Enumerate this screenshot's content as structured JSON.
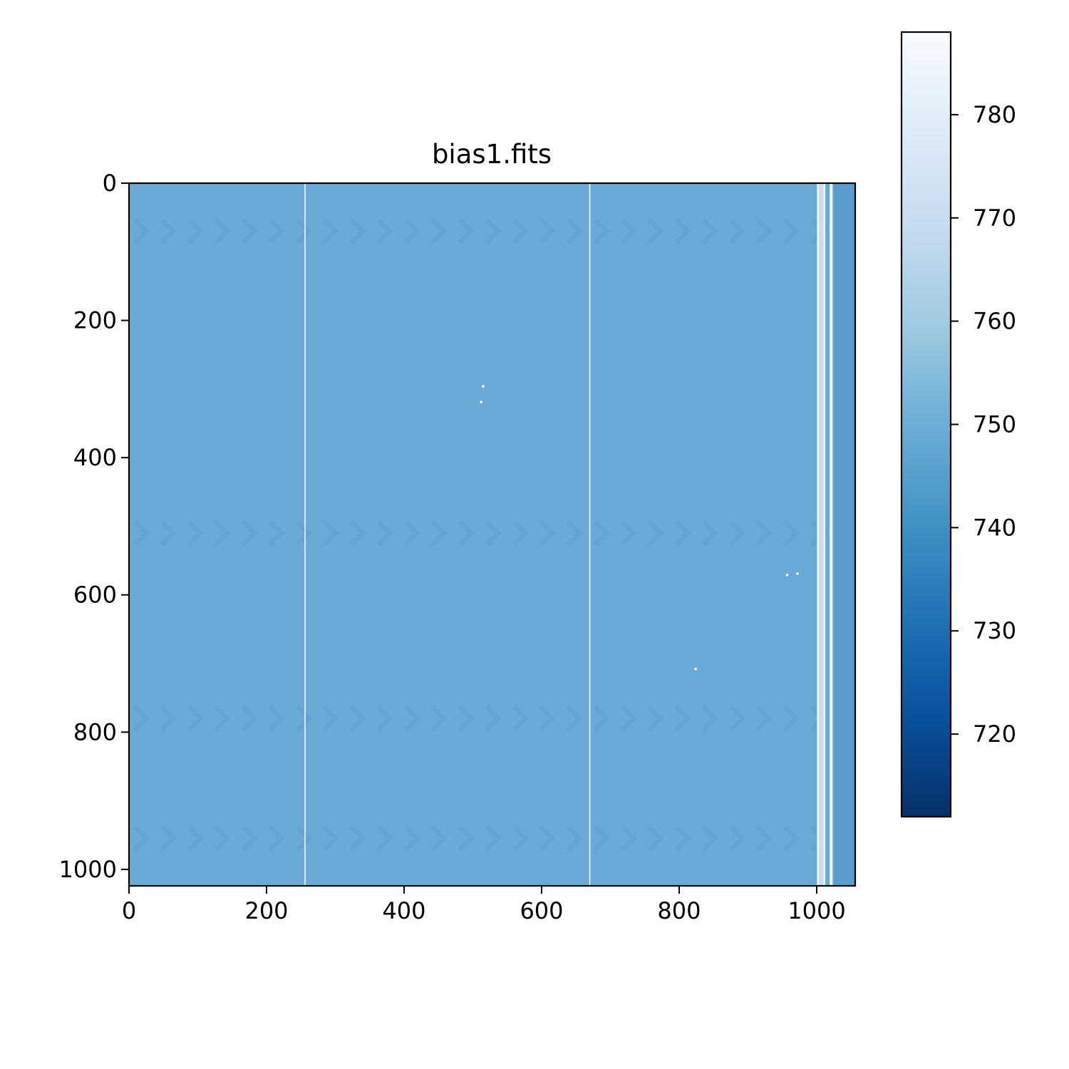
{
  "chart_data": {
    "type": "heatmap",
    "title": "bias1.fits",
    "xlabel": "",
    "ylabel": "",
    "image_shape": {
      "rows": 1024,
      "cols": 1056
    },
    "xlim": [
      0,
      1056
    ],
    "ylim": [
      1024,
      0
    ],
    "y_axis_inverted": true,
    "x_ticks": [
      0,
      200,
      400,
      600,
      800,
      1000
    ],
    "x_tick_labels": [
      "0",
      "200",
      "400",
      "600",
      "800",
      "1000"
    ],
    "y_ticks": [
      0,
      200,
      400,
      600,
      800,
      1000
    ],
    "y_tick_labels": [
      "0",
      "200",
      "400",
      "600",
      "800",
      "1000"
    ],
    "colormap": "Blues_r",
    "color_range": [
      712,
      788
    ],
    "colorbar_ticks": [
      720,
      730,
      740,
      750,
      760,
      770,
      780
    ],
    "colorbar_tick_labels": [
      "720",
      "730",
      "740",
      "750",
      "760",
      "770",
      "780"
    ],
    "colorbar_position": "right",
    "grid": false,
    "typical_value": 749,
    "bright_columns": [
      256,
      670,
      1002,
      1011,
      1021
    ],
    "overscan_region": {
      "x_start": 1025,
      "x_end": 1056,
      "value": 744
    },
    "herringbone_bands_rows": [
      70,
      510,
      780,
      955
    ],
    "hot_pixels": [
      {
        "x": 515,
        "y": 296
      },
      {
        "x": 512,
        "y": 319
      },
      {
        "x": 957,
        "y": 571
      },
      {
        "x": 972,
        "y": 569
      },
      {
        "x": 824,
        "y": 708
      }
    ]
  }
}
